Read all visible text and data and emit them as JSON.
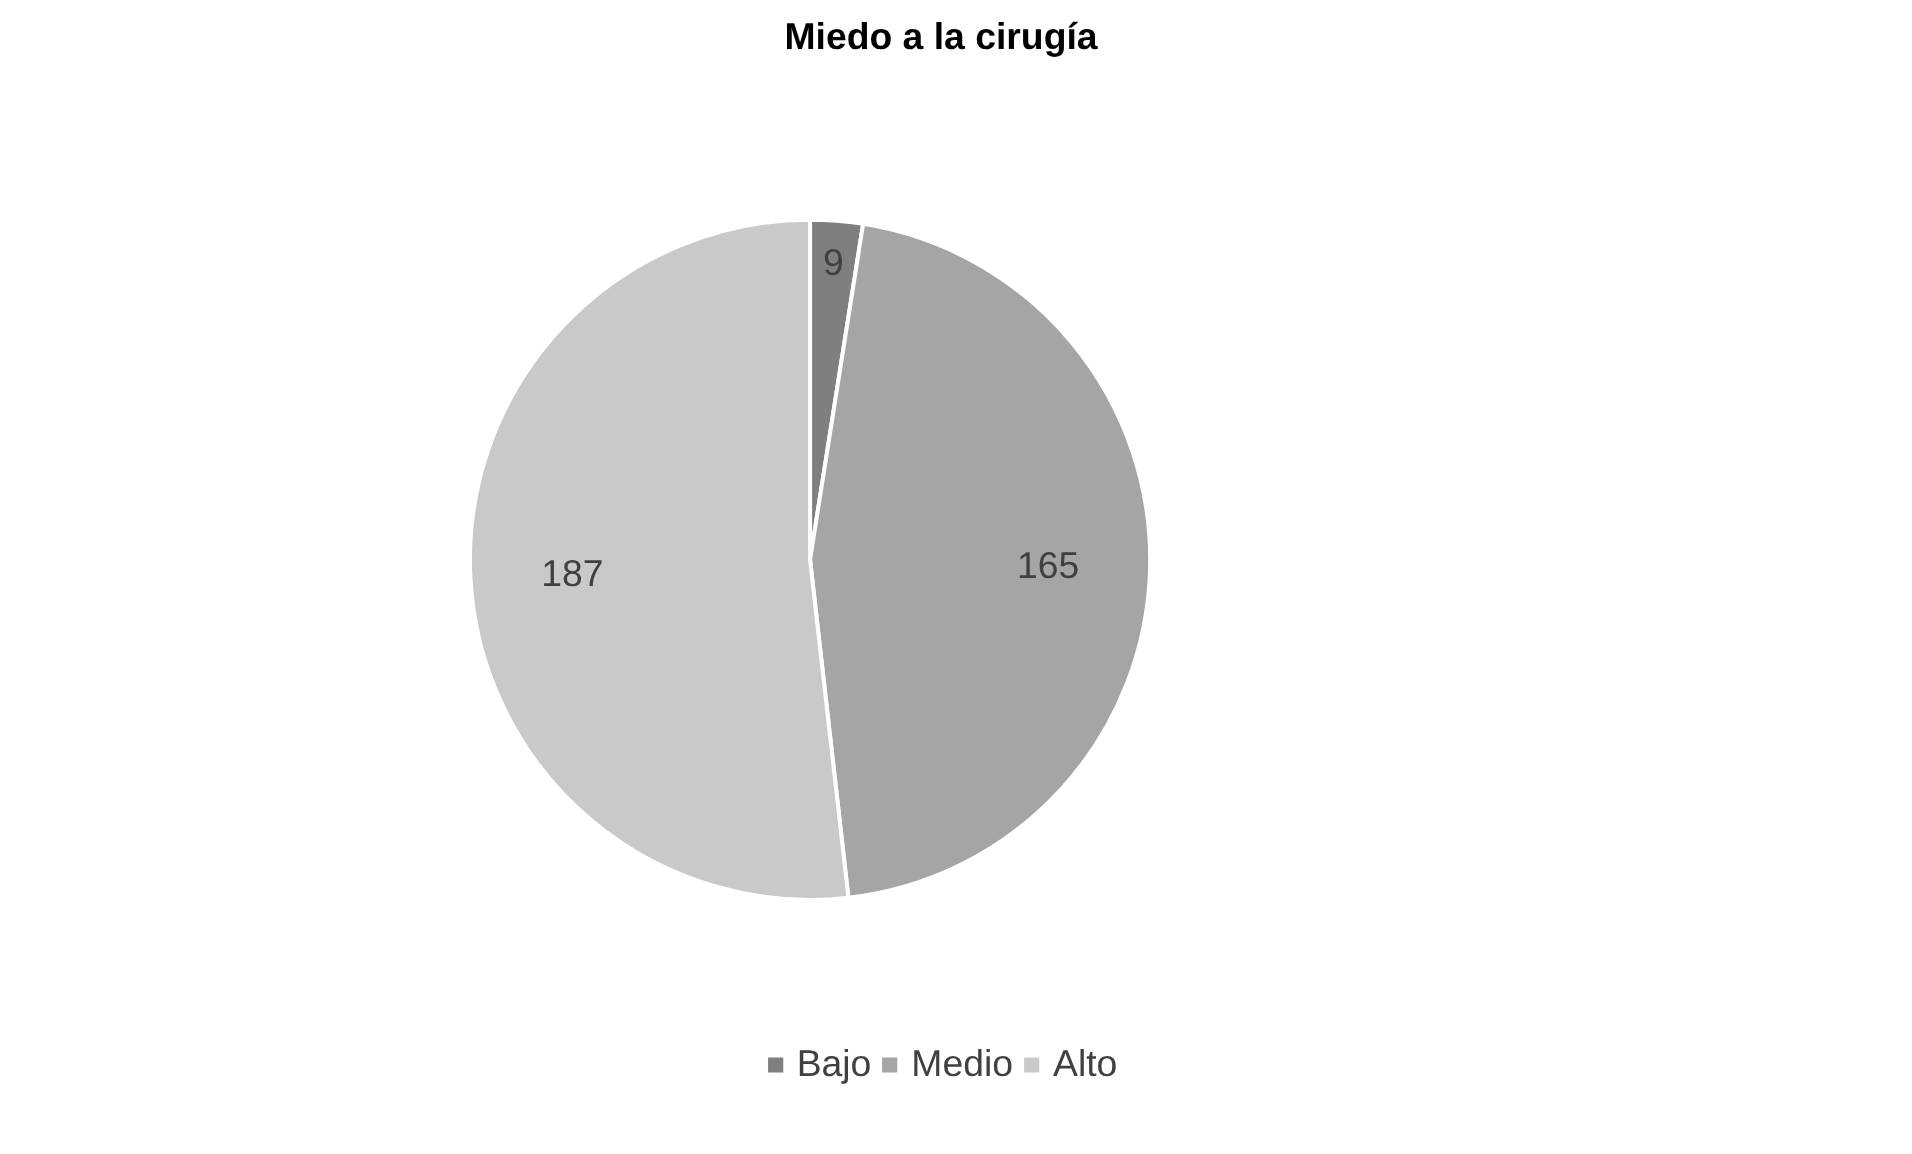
{
  "chart_data": {
    "type": "pie",
    "title": "Miedo a la cirugía",
    "categories": [
      "Bajo",
      "Medio",
      "Alto"
    ],
    "values": [
      9,
      165,
      187
    ],
    "colors": [
      "#7f7f7f",
      "#a5a5a5",
      "#c9c9c9"
    ],
    "data_labels": true,
    "legend": "bottom"
  }
}
